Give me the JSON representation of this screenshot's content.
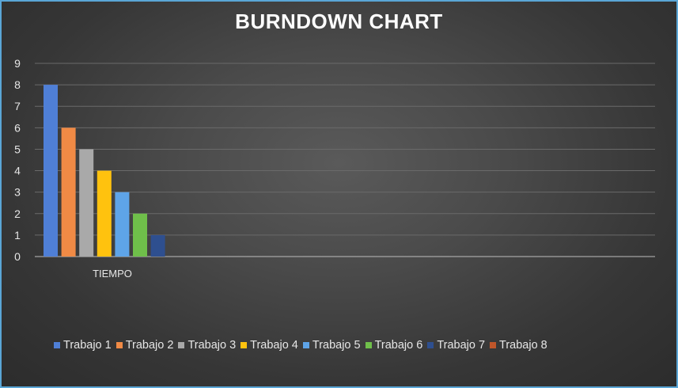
{
  "chart_data": {
    "type": "bar",
    "title": "BURNDOWN CHART",
    "categories": [
      "TIEMPO"
    ],
    "ylim": [
      0,
      9
    ],
    "yticks": [
      0,
      1,
      2,
      3,
      4,
      5,
      6,
      7,
      8,
      9
    ],
    "grid": true,
    "legend_position": "bottom",
    "series": [
      {
        "name": "Trabajo 1",
        "values": [
          8
        ],
        "color": "#4f7fd6"
      },
      {
        "name": "Trabajo 2",
        "values": [
          6
        ],
        "color": "#f08a45"
      },
      {
        "name": "Trabajo 3",
        "values": [
          5
        ],
        "color": "#a9a9a9"
      },
      {
        "name": "Trabajo 4",
        "values": [
          4
        ],
        "color": "#ffc20e"
      },
      {
        "name": "Trabajo 5",
        "values": [
          3
        ],
        "color": "#5ea4e8"
      },
      {
        "name": "Trabajo 6",
        "values": [
          2
        ],
        "color": "#6fbf4a"
      },
      {
        "name": "Trabajo 7",
        "values": [
          1
        ],
        "color": "#2e4f8f"
      },
      {
        "name": "Trabajo 8",
        "values": [
          0
        ],
        "color": "#c0562a"
      }
    ]
  }
}
